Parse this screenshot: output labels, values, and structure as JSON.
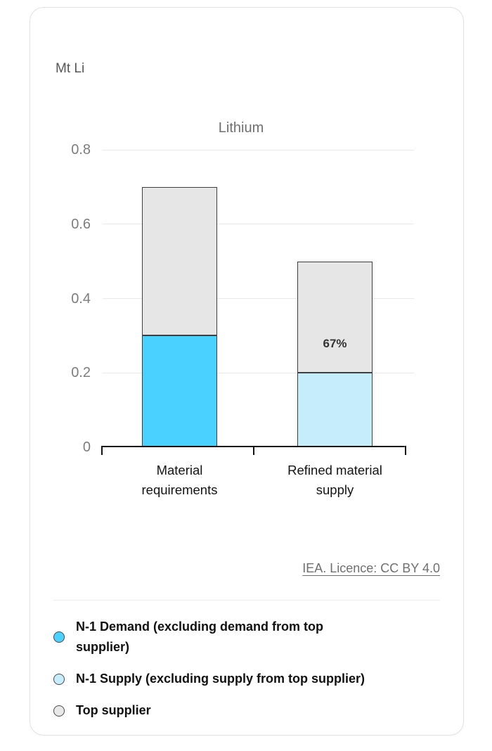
{
  "chart_data": {
    "type": "bar",
    "stacked": true,
    "title": "Lithium",
    "unit_label": "Mt Li",
    "categories": [
      "Material\nrequirements",
      "Refined material\nsupply"
    ],
    "series": [
      {
        "name": "N-1 Demand (excluding demand from top supplier)",
        "color": "#4ad1ff",
        "values": [
          0.3,
          0
        ]
      },
      {
        "name": "N-1 Supply (excluding supply from top supplier)",
        "color": "#c5edfb",
        "values": [
          0,
          0.2
        ]
      },
      {
        "name": "Top supplier",
        "color": "#e6e6e6",
        "values": [
          0.4,
          0.3
        ]
      }
    ],
    "annotations": [
      {
        "category_index": 1,
        "series_name": "Top supplier",
        "text": "67%"
      }
    ],
    "ylim": [
      0,
      0.8
    ],
    "yticks": [
      0,
      0.2,
      0.4,
      0.6,
      0.8
    ],
    "ytick_labels": [
      "0",
      "0.2",
      "0.4",
      "0.6",
      "0.8"
    ],
    "grid": "horizontal",
    "legend_position": "bottom"
  },
  "footer": {
    "licence_label": "IEA. Licence: CC BY 4.0"
  },
  "legend": {
    "items": [
      {
        "label": "N-1 Demand (excluding demand from top\nsupplier)",
        "color": "#4ad1ff"
      },
      {
        "label": "N-1 Supply (excluding supply from top supplier)",
        "color": "#c5edfb"
      },
      {
        "label": "Top supplier",
        "color": "#e8e8e8"
      }
    ]
  },
  "colors": {
    "demand_blue": "#4ad1ff",
    "supply_light_blue": "#c5edfb",
    "top_supplier_grey": "#e6e6e6",
    "segment_border": "#3f3f3f",
    "axis": "#141414",
    "gridline": "#e9e9e9",
    "muted_text": "#6f6f6f"
  }
}
